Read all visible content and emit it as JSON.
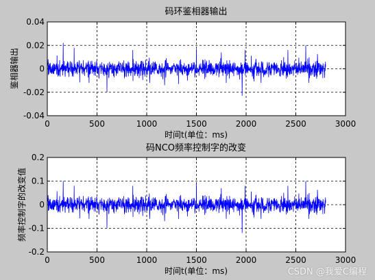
{
  "figure": {
    "background": "#c8c8c8",
    "axes_background": "#ffffff",
    "line_color": "#0000ff"
  },
  "watermark": "CSDN @我爱C编程",
  "chart_data": [
    {
      "type": "line",
      "title": "码环鉴相器输出",
      "xlabel": "时间t(单位：ms)",
      "ylabel": "鉴相器输出",
      "xlim": [
        0,
        3000
      ],
      "ylim": [
        -0.04,
        0.04
      ],
      "xticks": [
        0,
        500,
        1000,
        1500,
        2000,
        2500,
        3000
      ],
      "yticks": [
        -0.04,
        -0.02,
        0,
        0.02,
        0.04
      ],
      "grid": true,
      "series": [
        {
          "color": "#0000ff",
          "x_range": [
            0,
            2800
          ],
          "description_values": {
            "baseline": 0.0,
            "typical_amplitude": 0.006,
            "spikes": [
              [
                160,
                0.022
              ],
              [
                270,
                0.018
              ],
              [
                420,
                -0.012
              ],
              [
                600,
                -0.02
              ],
              [
                860,
                0.016
              ],
              [
                1030,
                -0.012
              ],
              [
                1180,
                -0.014
              ],
              [
                1320,
                -0.013
              ],
              [
                1500,
                0.017
              ],
              [
                1750,
                0.014
              ],
              [
                1800,
                -0.012
              ],
              [
                1960,
                -0.023
              ],
              [
                1990,
                0.016
              ],
              [
                2150,
                -0.012
              ],
              [
                2420,
                0.016
              ],
              [
                2600,
                0.02
              ],
              [
                2630,
                -0.012
              ]
            ]
          }
        }
      ]
    },
    {
      "type": "line",
      "title": "码NCO频率控制字的改变",
      "xlabel": "时间t(单位：ms)",
      "ylabel": "频率控制字的改变值",
      "xlim": [
        0,
        3000
      ],
      "ylim": [
        -0.2,
        0.2
      ],
      "xticks": [
        0,
        500,
        1000,
        1500,
        2000,
        2500,
        3000
      ],
      "yticks": [
        -0.2,
        -0.1,
        0,
        0.1,
        0.2
      ],
      "grid": true,
      "series": [
        {
          "color": "#0000ff",
          "x_range": [
            0,
            2800
          ],
          "description_values": {
            "baseline": 0.0,
            "typical_amplitude": 0.03,
            "spikes": [
              [
                160,
                0.1
              ],
              [
                270,
                0.08
              ],
              [
                420,
                -0.06
              ],
              [
                600,
                -0.1
              ],
              [
                860,
                0.08
              ],
              [
                1030,
                -0.06
              ],
              [
                1180,
                -0.07
              ],
              [
                1320,
                -0.06
              ],
              [
                1500,
                0.09
              ],
              [
                1750,
                0.07
              ],
              [
                1800,
                -0.06
              ],
              [
                1960,
                -0.12
              ],
              [
                1990,
                0.08
              ],
              [
                2150,
                -0.06
              ],
              [
                2420,
                0.08
              ],
              [
                2600,
                0.1
              ],
              [
                2630,
                -0.06
              ]
            ]
          }
        }
      ]
    }
  ]
}
